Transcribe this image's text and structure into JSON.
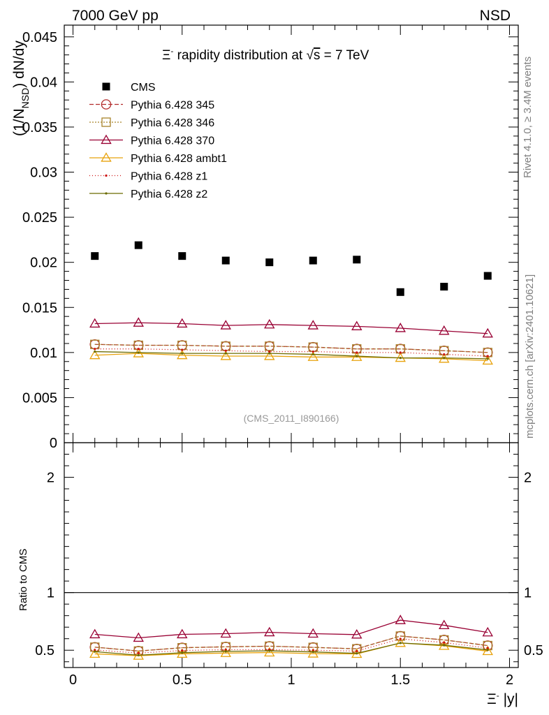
{
  "header": {
    "left_label": "7000 GeV pp",
    "right_label": "NSD"
  },
  "side": {
    "rivet": "Rivet 4.1.0, ≥ 3.4M events",
    "mcplots": "mcplots.cern.ch [arXiv:2401.10621]"
  },
  "chart_data": {
    "type": "scatter",
    "title": "Ξ⁻ rapidity distribution at √s = 7 TeV",
    "title_parts": {
      "xi": "Ξ",
      "minus": "-",
      "text": " rapidity distribution at ",
      "sqrt": "√",
      "s": "s",
      "rest": " = 7 TeV"
    },
    "analysis_tag": "(CMS_2011_I890166)",
    "ylabel_top": "(1/N_NSD) dN/dy",
    "ylabel_parts": {
      "a": "(1/N",
      "sub": "NSD",
      "b": ") dN/dy"
    },
    "ylabel_ratio": "Ratio to CMS",
    "xlabel": "Ξ⁻ |y|",
    "xlabel_parts": {
      "xi": "Ξ",
      "minus": "-",
      "rest": " |y|"
    },
    "xlim": [
      -0.04,
      2.04
    ],
    "ylim_top": [
      0,
      0.0463
    ],
    "ylim_ratio": [
      0.35,
      2.3
    ],
    "x_ticks": [
      "0",
      "0.5",
      "1",
      "1.5",
      "2"
    ],
    "y_ticks_top": [
      "0",
      "0.005",
      "0.01",
      "0.015",
      "0.02",
      "0.025",
      "0.03",
      "0.035",
      "0.04",
      "0.045"
    ],
    "y_ticks_ratio": [
      "0.5",
      "1",
      "2"
    ],
    "x": [
      0.1,
      0.3,
      0.5,
      0.7,
      0.9,
      1.1,
      1.3,
      1.5,
      1.7,
      1.9
    ],
    "data": {
      "name": "CMS",
      "values": [
        0.0207,
        0.0219,
        0.0207,
        0.0202,
        0.02,
        0.0202,
        0.0203,
        0.0167,
        0.0173,
        0.0185
      ]
    },
    "series": [
      {
        "name": "Pythia 6.428 345",
        "color": "#b22b2b",
        "dash": "6,3",
        "marker": "circle",
        "values": [
          0.0109,
          0.0108,
          0.0108,
          0.0107,
          0.0107,
          0.0106,
          0.0104,
          0.0104,
          0.0102,
          0.01
        ]
      },
      {
        "name": "Pythia 6.428 346",
        "color": "#a8832a",
        "dash": "2,2",
        "marker": "square",
        "values": [
          0.0109,
          0.0108,
          0.0108,
          0.0107,
          0.0107,
          0.0106,
          0.0104,
          0.0104,
          0.0102,
          0.01
        ]
      },
      {
        "name": "Pythia 6.428 370",
        "color": "#990033",
        "dash": "",
        "marker": "triangle",
        "values": [
          0.0132,
          0.0133,
          0.0132,
          0.013,
          0.0131,
          0.013,
          0.0129,
          0.0127,
          0.0124,
          0.0121
        ]
      },
      {
        "name": "Pythia 6.428 ambt1",
        "color": "#e8a20c",
        "dash": "",
        "marker": "triangle",
        "values": [
          0.0097,
          0.0099,
          0.0097,
          0.0096,
          0.0096,
          0.0095,
          0.0095,
          0.0094,
          0.0093,
          0.0091
        ]
      },
      {
        "name": "Pythia 6.428 z1",
        "color": "#cc1111",
        "dash": "1,3",
        "marker": "dot",
        "values": [
          0.0104,
          0.0104,
          0.0103,
          0.0102,
          0.0101,
          0.0101,
          0.01,
          0.01,
          0.0098,
          0.0096
        ]
      },
      {
        "name": "Pythia 6.428 z2",
        "color": "#6b6b00",
        "dash": "",
        "marker": "dot",
        "values": [
          0.0101,
          0.01,
          0.0099,
          0.0099,
          0.0099,
          0.0098,
          0.0096,
          0.0094,
          0.0094,
          0.0093
        ]
      }
    ]
  }
}
